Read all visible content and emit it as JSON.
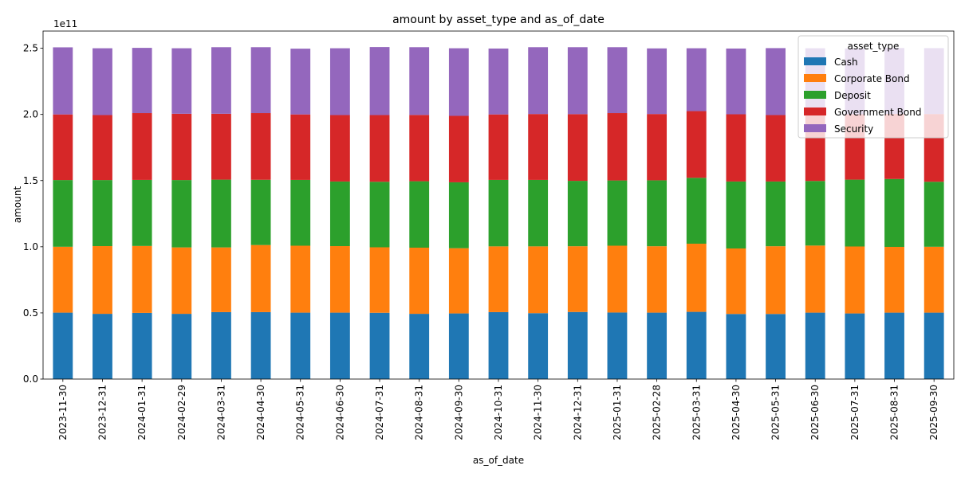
{
  "chart_data": {
    "type": "bar",
    "stacked": true,
    "title": "amount by asset_type and as_of_date",
    "xlabel": "as_of_date",
    "ylabel": "amount",
    "y_offset_text": "1e11",
    "ylim": [
      0,
      263000000000.0
    ],
    "yticks": [
      0,
      50000000000.0,
      100000000000.0,
      150000000000.0,
      200000000000.0,
      250000000000.0
    ],
    "ytick_labels": [
      "0.0",
      "0.5",
      "1.0",
      "1.5",
      "2.0",
      "2.5"
    ],
    "grid": false,
    "legend": {
      "title": "asset_type",
      "placement": "top-right"
    },
    "categories": [
      "2023-11-30",
      "2023-12-31",
      "2024-01-31",
      "2024-02-29",
      "2024-03-31",
      "2024-04-30",
      "2024-05-31",
      "2024-06-30",
      "2024-07-31",
      "2024-08-31",
      "2024-09-30",
      "2024-10-31",
      "2024-11-30",
      "2024-12-31",
      "2025-01-31",
      "2025-02-28",
      "2025-03-31",
      "2025-04-30",
      "2025-05-31",
      "2025-06-30",
      "2025-07-31",
      "2025-08-31",
      "2025-09-30"
    ],
    "series": [
      {
        "name": "Cash",
        "color": "#1f77b4",
        "values": [
          50200000000.0,
          49300000000.0,
          50000000000.0,
          49300000000.0,
          50600000000.0,
          50600000000.0,
          50200000000.0,
          50200000000.0,
          50100000000.0,
          49300000000.0,
          49600000000.0,
          50600000000.0,
          49800000000.0,
          50700000000.0,
          50300000000.0,
          50200000000.0,
          50800000000.0,
          49200000000.0,
          49200000000.0,
          50200000000.0,
          49600000000.0,
          50200000000.0,
          50200000000.0
        ]
      },
      {
        "name": "Corporate Bond",
        "color": "#ff7f0e",
        "values": [
          49800000000.0,
          51200000000.0,
          50600000000.0,
          50200000000.0,
          48900000000.0,
          50700000000.0,
          50600000000.0,
          50300000000.0,
          49500000000.0,
          50000000000.0,
          49300000000.0,
          49700000000.0,
          50500000000.0,
          49700000000.0,
          50500000000.0,
          50200000000.0,
          51500000000.0,
          49500000000.0,
          51200000000.0,
          50700000000.0,
          50600000000.0,
          49700000000.0,
          49800000000.0
        ]
      },
      {
        "name": "Deposit",
        "color": "#2ca02c",
        "values": [
          50400000000.0,
          49900000000.0,
          49900000000.0,
          50900000000.0,
          51200000000.0,
          49300000000.0,
          49700000000.0,
          48800000000.0,
          49500000000.0,
          50200000000.0,
          49800000000.0,
          50200000000.0,
          50200000000.0,
          49400000000.0,
          49300000000.0,
          49800000000.0,
          49800000000.0,
          50600000000.0,
          48900000000.0,
          48800000000.0,
          50500000000.0,
          51300000000.0,
          49100000000.0
        ]
      },
      {
        "name": "Government Bond",
        "color": "#d62728",
        "values": [
          49600000000.0,
          49100000000.0,
          50500000000.0,
          50100000000.0,
          49800000000.0,
          50400000000.0,
          49500000000.0,
          50200000000.0,
          50400000000.0,
          50100000000.0,
          50200000000.0,
          49500000000.0,
          49800000000.0,
          50400000000.0,
          50900000000.0,
          50100000000.0,
          50400000000.0,
          50800000000.0,
          50200000000.0,
          50600000000.0,
          49400000000.0,
          49200000000.0,
          51200000000.0
        ]
      },
      {
        "name": "Security",
        "color": "#9467bd",
        "values": [
          50700000000.0,
          50500000000.0,
          49300000000.0,
          49500000000.0,
          50300000000.0,
          49800000000.0,
          49700000000.0,
          50500000000.0,
          51400000000.0,
          51200000000.0,
          51100000000.0,
          49800000000.0,
          50500000000.0,
          50600000000.0,
          49800000000.0,
          49600000000.0,
          47500000000.0,
          49700000000.0,
          50600000000.0,
          49700000000.0,
          49700000000.0,
          49800000000.0,
          49800000000.0
        ]
      }
    ]
  }
}
